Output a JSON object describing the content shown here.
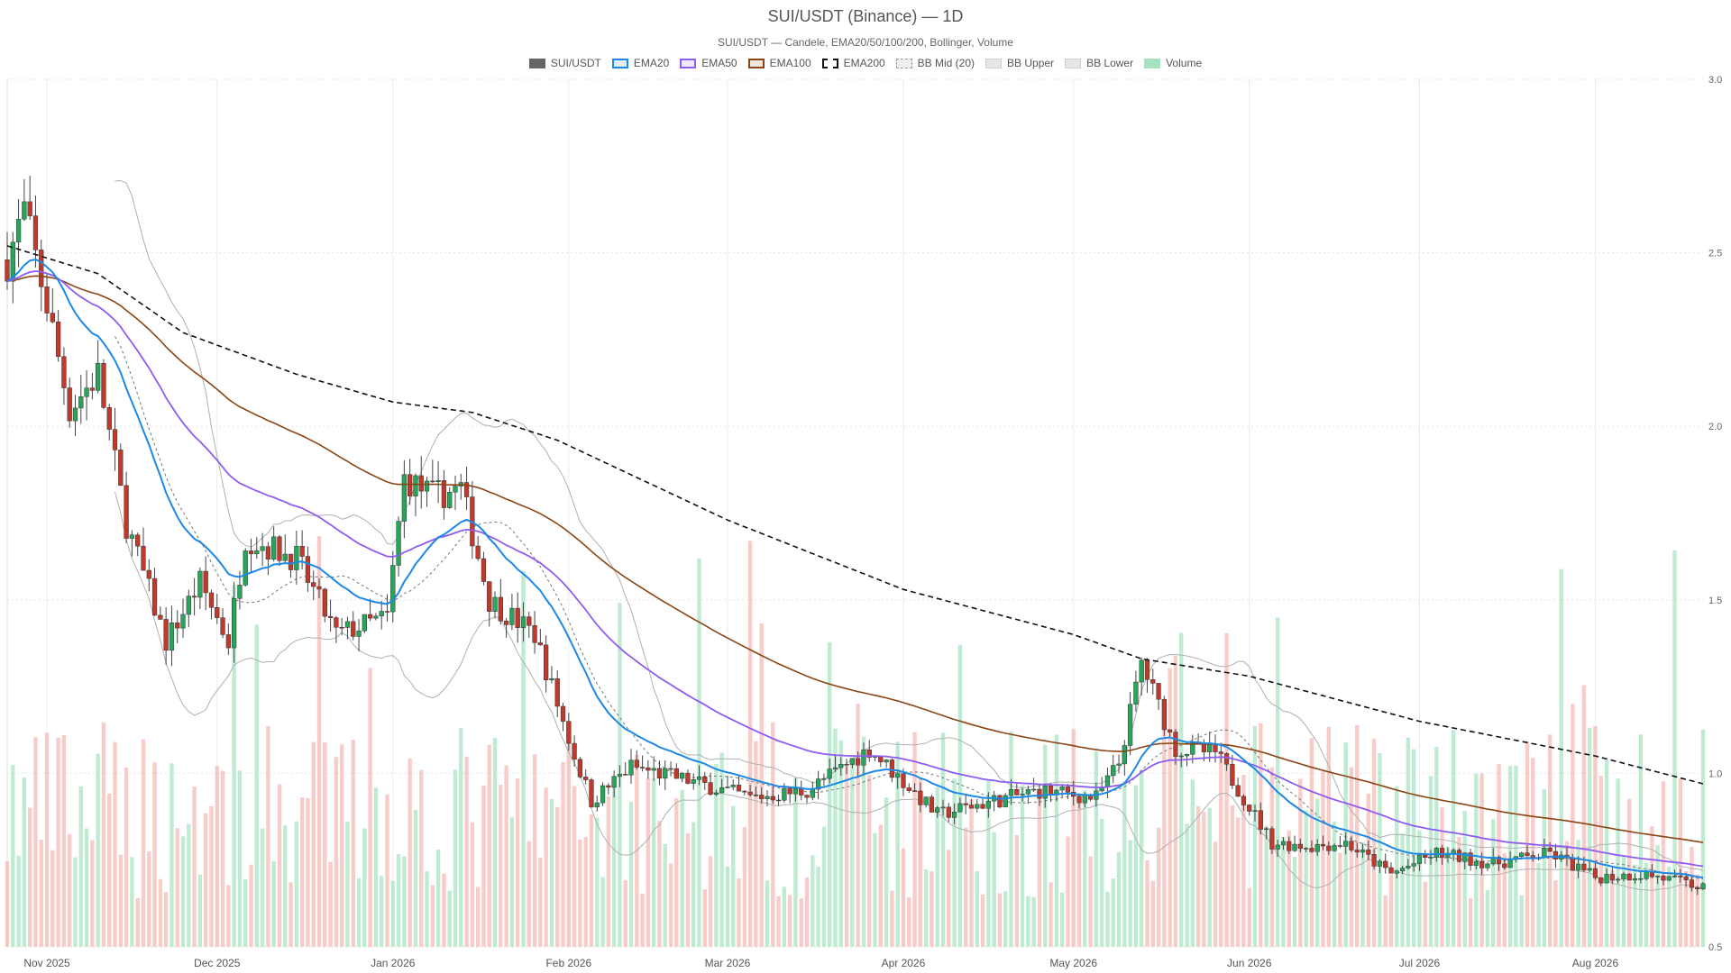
{
  "title": "SUI/USDT (Binance) — 1D",
  "subtitle": "SUI/USDT — Candele, EMA20/50/100/200, Bollinger, Volume",
  "legend": [
    {
      "label": "SUI/USDT",
      "color": "#666666",
      "style": "solid-fill"
    },
    {
      "label": "EMA20",
      "color": "#1e88e5",
      "style": "outline"
    },
    {
      "label": "EMA50",
      "color": "#8e5cf0",
      "style": "outline"
    },
    {
      "label": "EMA100",
      "color": "#8b4513",
      "style": "outline"
    },
    {
      "label": "EMA200",
      "color": "#111111",
      "style": "dashed-outline"
    },
    {
      "label": "BB Mid (20)",
      "color": "#9e9e9e",
      "style": "dashed-light"
    },
    {
      "label": "BB Upper",
      "color": "#bdbdbd",
      "style": "light"
    },
    {
      "label": "BB Lower",
      "color": "#bdbdbd",
      "style": "light"
    },
    {
      "label": "Volume",
      "color": "#a5e3c0",
      "style": "light-green"
    }
  ],
  "chart_data": {
    "type": "candlestick",
    "ylim": [
      0.5,
      3.0
    ],
    "yticks": [
      "0.5",
      "1.0",
      "1.5",
      "2.0",
      "2.5",
      "3.0"
    ],
    "x_tick_labels": [
      "Nov 2025",
      "Dec 2025",
      "Jan 2026",
      "Feb 2026",
      "Mar 2026",
      "Apr 2026",
      "May 2026",
      "Jun 2026",
      "Jul 2026",
      "Aug 2026"
    ],
    "grid": true,
    "colors": {
      "up": "#26a65b",
      "down": "#c0392b",
      "vol_up": "#a5e3c0",
      "vol_down": "#f5b7b1",
      "ema20": "#1e88e5",
      "ema50": "#8e5cf0",
      "ema100": "#8b4513",
      "ema200": "#111111",
      "bb": "#b0b0b0"
    },
    "price_anchors": [
      {
        "d": "2025-10-25",
        "p": 2.48
      },
      {
        "d": "2025-10-28",
        "p": 2.62
      },
      {
        "d": "2025-11-01",
        "p": 2.35
      },
      {
        "d": "2025-11-05",
        "p": 2.05
      },
      {
        "d": "2025-11-10",
        "p": 2.15
      },
      {
        "d": "2025-11-15",
        "p": 1.72
      },
      {
        "d": "2025-11-22",
        "p": 1.38
      },
      {
        "d": "2025-11-28",
        "p": 1.55
      },
      {
        "d": "2025-12-03",
        "p": 1.38
      },
      {
        "d": "2025-12-06",
        "p": 1.68
      },
      {
        "d": "2025-12-15",
        "p": 1.62
      },
      {
        "d": "2025-12-22",
        "p": 1.4
      },
      {
        "d": "2025-12-31",
        "p": 1.45
      },
      {
        "d": "2026-01-03",
        "p": 1.85
      },
      {
        "d": "2026-01-08",
        "p": 1.8
      },
      {
        "d": "2026-01-13",
        "p": 1.82
      },
      {
        "d": "2026-01-18",
        "p": 1.5
      },
      {
        "d": "2026-01-26",
        "p": 1.4
      },
      {
        "d": "2026-02-02",
        "p": 1.05
      },
      {
        "d": "2026-02-05",
        "p": 0.92
      },
      {
        "d": "2026-02-12",
        "p": 1.02
      },
      {
        "d": "2026-02-22",
        "p": 0.98
      },
      {
        "d": "2026-03-05",
        "p": 0.93
      },
      {
        "d": "2026-03-15",
        "p": 0.95
      },
      {
        "d": "2026-03-26",
        "p": 1.07
      },
      {
        "d": "2026-04-07",
        "p": 0.88
      },
      {
        "d": "2026-04-14",
        "p": 0.91
      },
      {
        "d": "2026-04-25",
        "p": 0.95
      },
      {
        "d": "2026-05-05",
        "p": 0.93
      },
      {
        "d": "2026-05-09",
        "p": 1.03
      },
      {
        "d": "2026-05-13",
        "p": 1.32
      },
      {
        "d": "2026-05-19",
        "p": 1.07
      },
      {
        "d": "2026-05-26",
        "p": 1.06
      },
      {
        "d": "2026-06-05",
        "p": 0.8
      },
      {
        "d": "2026-06-12",
        "p": 0.79
      },
      {
        "d": "2026-06-18",
        "p": 0.8
      },
      {
        "d": "2026-06-26",
        "p": 0.71
      },
      {
        "d": "2026-07-04",
        "p": 0.77
      },
      {
        "d": "2026-07-14",
        "p": 0.74
      },
      {
        "d": "2026-07-24",
        "p": 0.77
      },
      {
        "d": "2026-08-01",
        "p": 0.7
      },
      {
        "d": "2026-08-10",
        "p": 0.71
      },
      {
        "d": "2026-08-20",
        "p": 0.67
      }
    ],
    "ema200_anchors": [
      {
        "d": "2025-10-25",
        "p": 2.52
      },
      {
        "d": "2025-11-10",
        "p": 2.44
      },
      {
        "d": "2025-11-25",
        "p": 2.27
      },
      {
        "d": "2025-12-15",
        "p": 2.15
      },
      {
        "d": "2026-01-01",
        "p": 2.07
      },
      {
        "d": "2026-01-15",
        "p": 2.04
      },
      {
        "d": "2026-01-30",
        "p": 1.96
      },
      {
        "d": "2026-03-01",
        "p": 1.73
      },
      {
        "d": "2026-04-01",
        "p": 1.53
      },
      {
        "d": "2026-05-01",
        "p": 1.4
      },
      {
        "d": "2026-05-13",
        "p": 1.33
      },
      {
        "d": "2026-06-01",
        "p": 1.28
      },
      {
        "d": "2026-07-01",
        "p": 1.15
      },
      {
        "d": "2026-08-01",
        "p": 1.05
      },
      {
        "d": "2026-08-20",
        "p": 0.97
      }
    ]
  }
}
